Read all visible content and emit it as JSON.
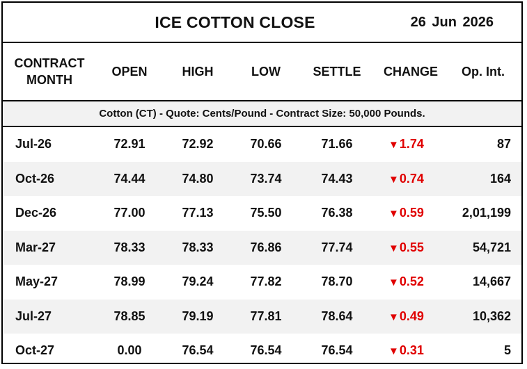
{
  "title": "ICE COTTON CLOSE",
  "date": "26  Jun 2026",
  "headers": {
    "month": "CONTRACT MONTH",
    "open": "OPEN",
    "high": "HIGH",
    "low": "LOW",
    "settle": "SETTLE",
    "change": "CHANGE",
    "oi": "Op. Int."
  },
  "info": "Cotton (CT) - Quote: Cents/Pound - Contract Size: 50,000 Pounds.",
  "colors": {
    "down": "#e00000",
    "alt_row": "#f2f2f2"
  },
  "rows": [
    {
      "month": "Jul-26",
      "open": "72.91",
      "high": "72.92",
      "low": "70.66",
      "settle": "71.66",
      "arrow": "▼",
      "change": "1.74",
      "oi": "87"
    },
    {
      "month": "Oct-26",
      "open": "74.44",
      "high": "74.80",
      "low": "73.74",
      "settle": "74.43",
      "arrow": "▼",
      "change": "0.74",
      "oi": "164"
    },
    {
      "month": "Dec-26",
      "open": "77.00",
      "high": "77.13",
      "low": "75.50",
      "settle": "76.38",
      "arrow": "▼",
      "change": "0.59",
      "oi": "2,01,199"
    },
    {
      "month": "Mar-27",
      "open": "78.33",
      "high": "78.33",
      "low": "76.86",
      "settle": "77.74",
      "arrow": "▼",
      "change": "0.55",
      "oi": "54,721"
    },
    {
      "month": "May-27",
      "open": "78.99",
      "high": "79.24",
      "low": "77.82",
      "settle": "78.70",
      "arrow": "▼",
      "change": "0.52",
      "oi": "14,667"
    },
    {
      "month": "Jul-27",
      "open": "78.85",
      "high": "79.19",
      "low": "77.81",
      "settle": "78.64",
      "arrow": "▼",
      "change": "0.49",
      "oi": "10,362"
    },
    {
      "month": "Oct-27",
      "open": "0.00",
      "high": "76.54",
      "low": "76.54",
      "settle": "76.54",
      "arrow": "▼",
      "change": "0.31",
      "oi": "5"
    }
  ]
}
